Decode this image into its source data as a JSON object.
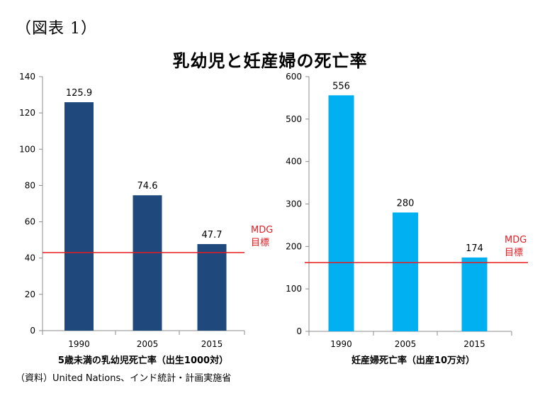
{
  "figure_label": "（図表 1）",
  "main_title": "乳幼児と妊産婦の死亡率",
  "source_note": "（資料）United Nations、インド統計・計画実施省",
  "chart_data": [
    {
      "type": "bar",
      "categories": [
        "1990",
        "2005",
        "2015"
      ],
      "values": [
        125.9,
        74.6,
        47.7
      ],
      "data_labels": [
        "125.9",
        "74.6",
        "47.7"
      ],
      "xlabel": "5歳未満の乳幼児死亡率（出生1000対）",
      "ylabel": "",
      "ylim": [
        0,
        140
      ],
      "yticks": [
        0,
        20,
        40,
        60,
        80,
        100,
        120,
        140
      ],
      "bar_color": "#1F497D",
      "target": {
        "value": 43,
        "label_line1": "MDG",
        "label_line2": "目標",
        "color": "#E31E24"
      }
    },
    {
      "type": "bar",
      "categories": [
        "1990",
        "2005",
        "2015"
      ],
      "values": [
        556,
        280,
        174
      ],
      "data_labels": [
        "556",
        "280",
        "174"
      ],
      "xlabel": "妊産婦死亡率（出産10万対）",
      "ylabel": "",
      "ylim": [
        0,
        600
      ],
      "yticks": [
        0,
        100,
        200,
        300,
        400,
        500,
        600
      ],
      "bar_color": "#00B0F0",
      "target": {
        "value": 162,
        "label_line1": "MDG",
        "label_line2": "目標",
        "color": "#E31E24"
      }
    }
  ]
}
